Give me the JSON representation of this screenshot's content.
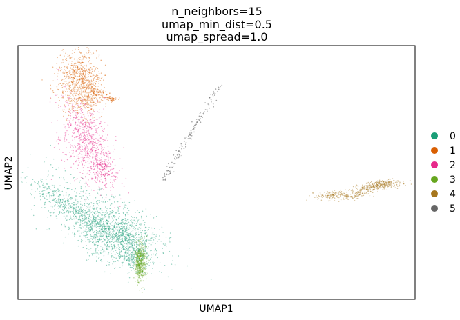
{
  "chart_data": {
    "type": "scatter",
    "title": [
      "n_neighbors=15",
      "umap_min_dist=0.5",
      "umap_spread=1.0"
    ],
    "xlabel": "UMAP1",
    "ylabel": "UMAP2",
    "grid": false,
    "ticks": false,
    "legend_position": "right",
    "series": [
      {
        "name": "0",
        "color": "#1b9e77"
      },
      {
        "name": "1",
        "color": "#d95f02"
      },
      {
        "name": "2",
        "color": "#e7298a"
      },
      {
        "name": "3",
        "color": "#66a61e"
      },
      {
        "name": "4",
        "color": "#a6761d"
      },
      {
        "name": "5",
        "color": "#666666"
      }
    ]
  }
}
